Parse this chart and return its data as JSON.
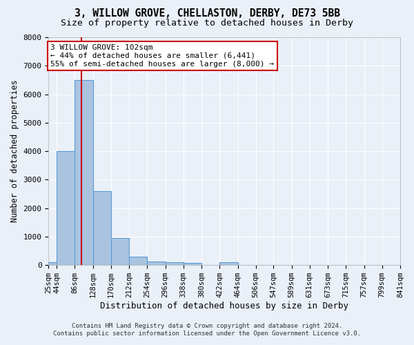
{
  "title1": "3, WILLOW GROVE, CHELLASTON, DERBY, DE73 5BB",
  "title2": "Size of property relative to detached houses in Derby",
  "xlabel": "Distribution of detached houses by size in Derby",
  "ylabel": "Number of detached properties",
  "footer1": "Contains HM Land Registry data © Crown copyright and database right 2024.",
  "footer2": "Contains public sector information licensed under the Open Government Licence v3.0.",
  "bin_edges": [
    25,
    44,
    86,
    128,
    170,
    212,
    254,
    296,
    338,
    380,
    422,
    464,
    506,
    547,
    589,
    631,
    673,
    715,
    757,
    799,
    841
  ],
  "bin_heights": [
    100,
    4000,
    6500,
    2600,
    950,
    300,
    130,
    100,
    80,
    0,
    100,
    0,
    0,
    0,
    0,
    0,
    0,
    0,
    0,
    0
  ],
  "bar_color": "#aac4e0",
  "bar_edge_color": "#5b9bd5",
  "property_line_x": 102,
  "property_line_color": "#cc0000",
  "annotation_line1": "3 WILLOW GROVE: 102sqm",
  "annotation_line2": "← 44% of detached houses are smaller (6,441)",
  "annotation_line3": "55% of semi-detached houses are larger (8,000) →",
  "annotation_box_color": "#ffffff",
  "annotation_border_color": "#cc0000",
  "ylim": [
    0,
    8000
  ],
  "xlim": [
    25,
    841
  ],
  "bg_color": "#eaf0f8",
  "grid_color": "#ffffff",
  "title1_fontsize": 10.5,
  "title2_fontsize": 9.5,
  "tick_labels": [
    "25sqm",
    "44sqm",
    "86sqm",
    "128sqm",
    "170sqm",
    "212sqm",
    "254sqm",
    "296sqm",
    "338sqm",
    "380sqm",
    "422sqm",
    "464sqm",
    "506sqm",
    "547sqm",
    "589sqm",
    "631sqm",
    "673sqm",
    "715sqm",
    "757sqm",
    "799sqm",
    "841sqm"
  ]
}
